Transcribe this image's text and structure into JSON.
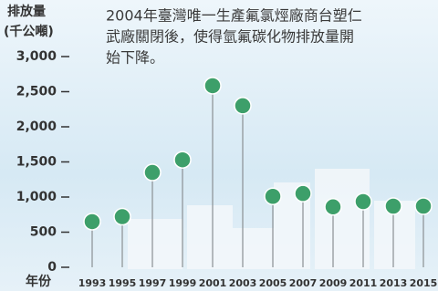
{
  "chart_data": {
    "type": "lollipop",
    "y_label_lines": [
      "排放量",
      "(千公噸)"
    ],
    "x_label": "年份",
    "annotation_lines": [
      "2004年臺灣唯一生產氟氯烴廠商台塑仁",
      "武廠關閉後，使得氫氟碳化物排放量開",
      "始下降。"
    ],
    "categories": [
      "1993",
      "1995",
      "1997",
      "1999",
      "2001",
      "2003",
      "2005",
      "2007",
      "2009",
      "2011",
      "2013",
      "2015"
    ],
    "values": [
      650,
      720,
      1350,
      1530,
      2585,
      2300,
      1010,
      1050,
      860,
      935,
      870,
      870
    ],
    "color": "#3d9f6a",
    "ylim": [
      0,
      3000
    ],
    "yticks": [
      0,
      500,
      {
        "value": 1000,
        "label": "1,000"
      },
      {
        "value": 1500,
        "label": "1,500"
      },
      {
        "value": 2000,
        "label": "2,000"
      },
      {
        "value": 2500,
        "label": "2,500"
      },
      {
        "value": 3000,
        "label": "3,000"
      }
    ]
  }
}
